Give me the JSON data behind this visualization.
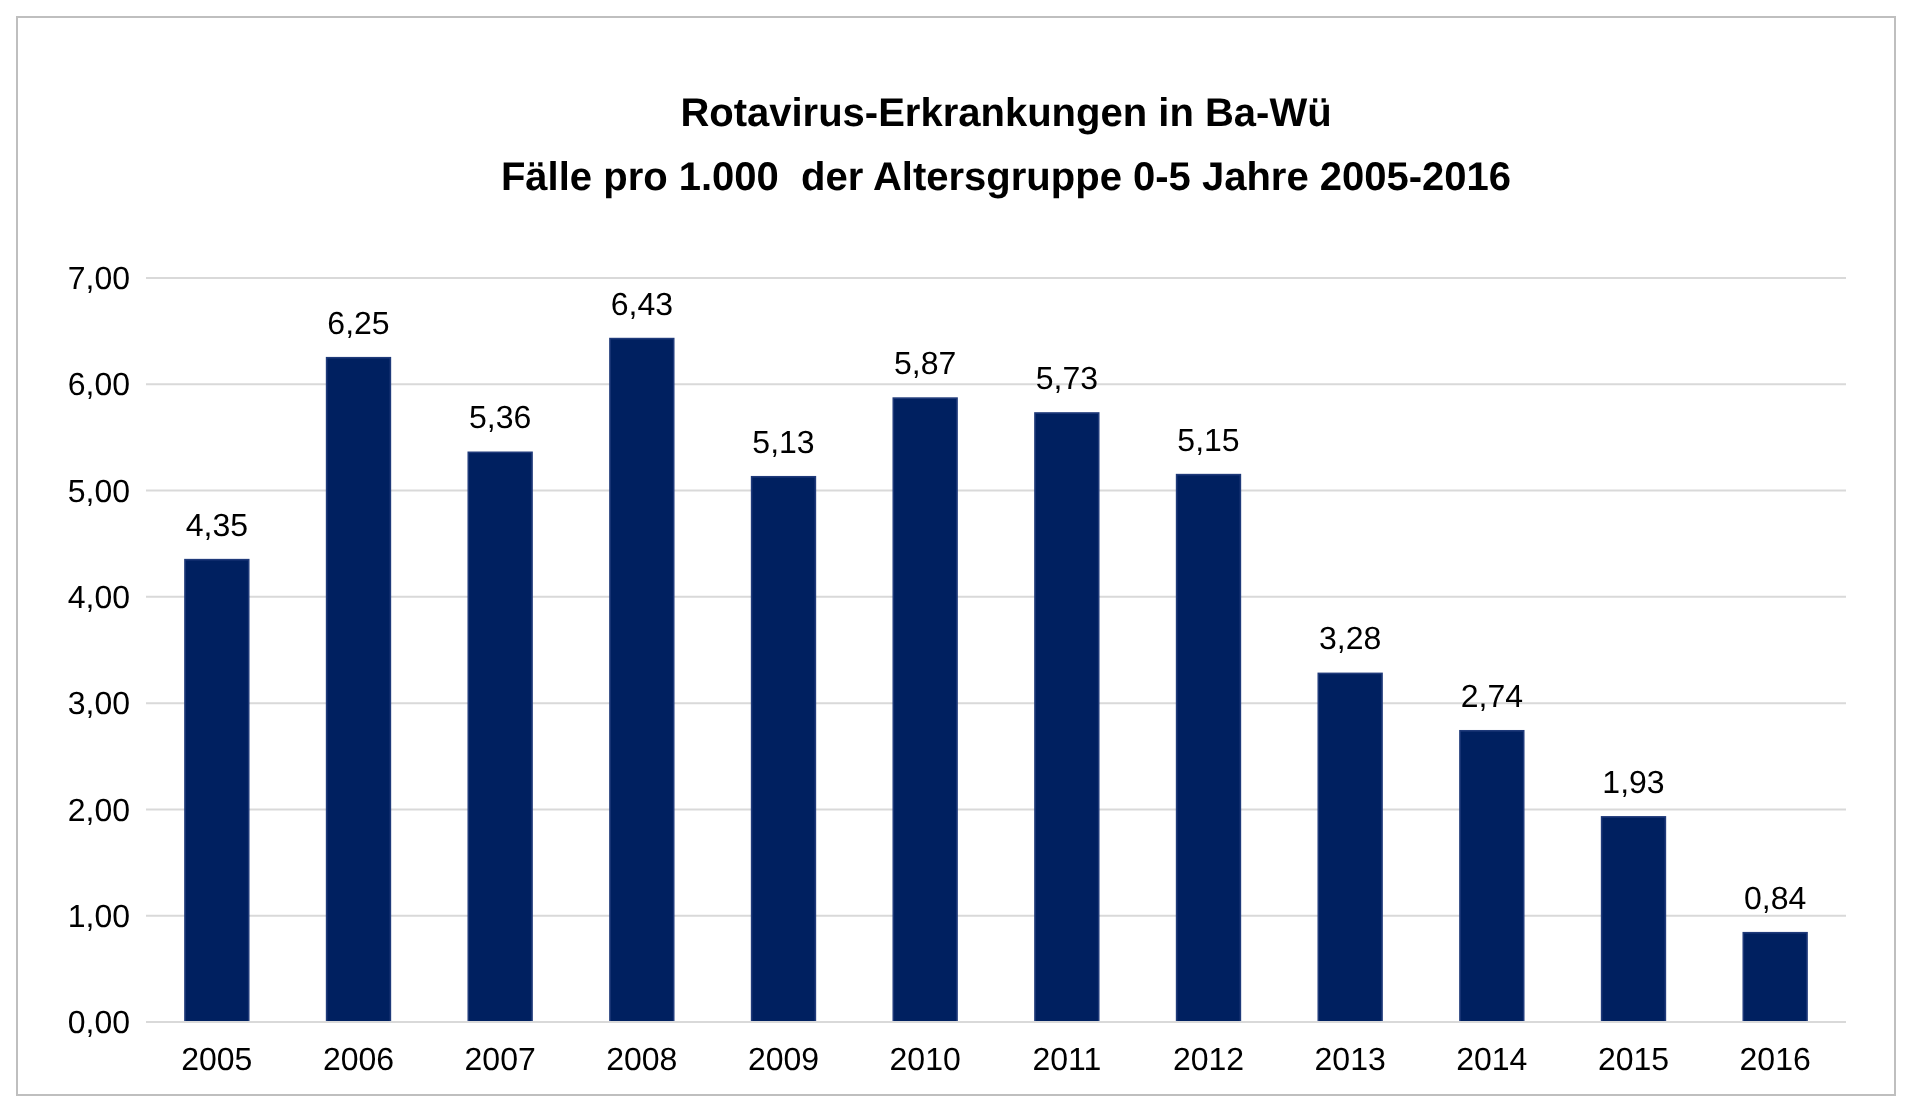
{
  "chart_data": {
    "type": "bar",
    "title": "Rotavirus-Erkrankungen in Ba-Wü",
    "subtitle": "Fälle pro 1.000  der Altersgruppe 0-5 Jahre 2005-2016",
    "categories": [
      "2005",
      "2006",
      "2007",
      "2008",
      "2009",
      "2010",
      "2011",
      "2012",
      "2013",
      "2014",
      "2015",
      "2016"
    ],
    "values": [
      4.35,
      6.25,
      5.36,
      6.43,
      5.13,
      5.87,
      5.73,
      5.15,
      3.28,
      2.74,
      1.93,
      0.84
    ],
    "value_labels": [
      "4,35",
      "6,25",
      "5,36",
      "6,43",
      "5,13",
      "5,87",
      "5,73",
      "5,15",
      "3,28",
      "2,74",
      "1,93",
      "0,84"
    ],
    "color": "#002060",
    "ylim": [
      0,
      7
    ],
    "yticks": [
      {
        "value": 0,
        "label": "0,00"
      },
      {
        "value": 1,
        "label": "1,00"
      },
      {
        "value": 2,
        "label": "2,00"
      },
      {
        "value": 3,
        "label": "3,00"
      },
      {
        "value": 4,
        "label": "4,00"
      },
      {
        "value": 5,
        "label": "5,00"
      },
      {
        "value": 6,
        "label": "6,00"
      },
      {
        "value": 7,
        "label": "7,00"
      }
    ],
    "grid": "y"
  }
}
